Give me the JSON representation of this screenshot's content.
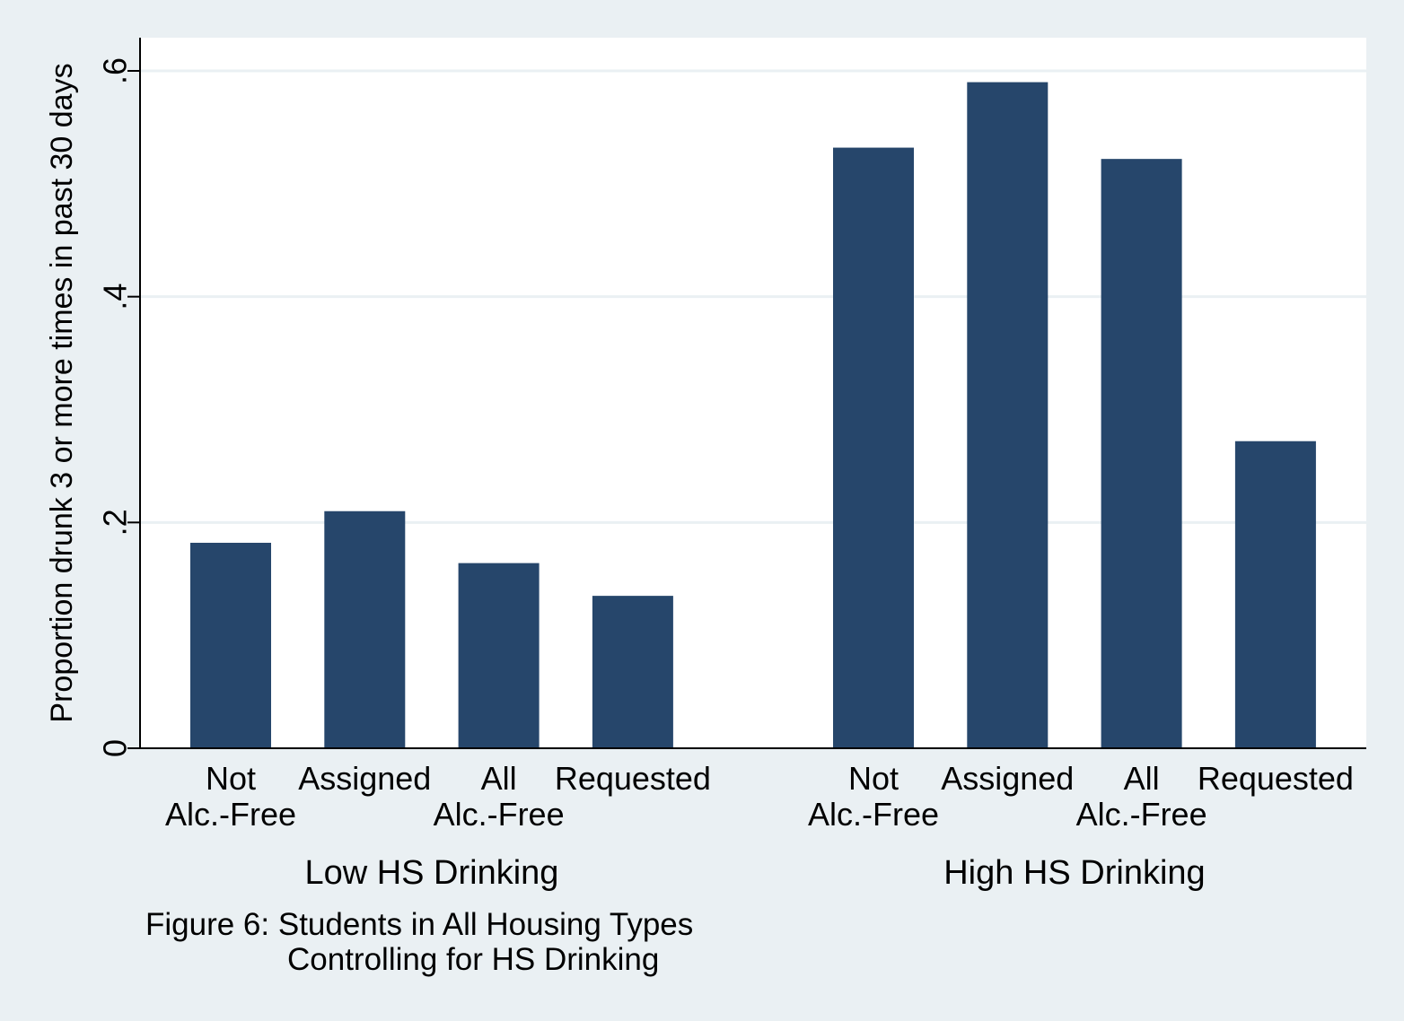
{
  "chart_data": {
    "type": "bar",
    "ylabel": "Proportion drunk 3 or more times in past 30 days",
    "xlabel": "",
    "ylim": [
      0,
      0.63
    ],
    "yticks": [
      {
        "value": 0,
        "label": "0"
      },
      {
        "value": 0.2,
        "label": ".2"
      },
      {
        "value": 0.4,
        "label": ".4"
      },
      {
        "value": 0.6,
        "label": ".6"
      }
    ],
    "grid": true,
    "bar_color": "#26466b",
    "groups": [
      {
        "label": "Low HS Drinking",
        "bars": [
          {
            "label_lines": [
              "Not",
              "Alc.-Free"
            ],
            "value": 0.182
          },
          {
            "label_lines": [
              "Assigned"
            ],
            "value": 0.21
          },
          {
            "label_lines": [
              "All",
              "Alc.-Free"
            ],
            "value": 0.164
          },
          {
            "label_lines": [
              "Requested"
            ],
            "value": 0.135
          }
        ]
      },
      {
        "label": "High HS Drinking",
        "bars": [
          {
            "label_lines": [
              "Not",
              "Alc.-Free"
            ],
            "value": 0.532
          },
          {
            "label_lines": [
              "Assigned"
            ],
            "value": 0.59
          },
          {
            "label_lines": [
              "All",
              "Alc.-Free"
            ],
            "value": 0.522
          },
          {
            "label_lines": [
              "Requested"
            ],
            "value": 0.272
          }
        ]
      }
    ],
    "caption_lines": [
      "Figure 6: Students in All Housing Types",
      "Controlling for HS Drinking"
    ]
  }
}
